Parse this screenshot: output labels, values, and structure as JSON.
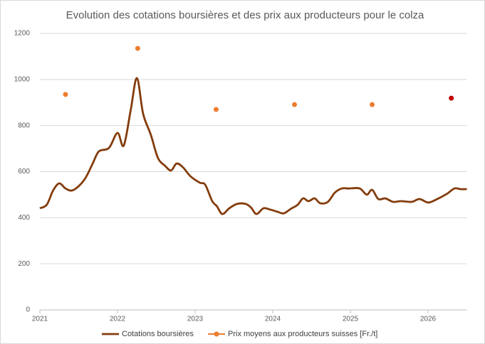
{
  "chart_data": {
    "type": "line",
    "title": "Evolution des cotations boursières et des prix aux producteurs pour le colza",
    "xlim": [
      2021,
      2026.5
    ],
    "xticks": [
      2021,
      2022,
      2023,
      2024,
      2025,
      2026
    ],
    "ylim": [
      0,
      1200
    ],
    "yticks": [
      0,
      200,
      400,
      600,
      800,
      1000,
      1200
    ],
    "grid": true,
    "legend": "bottom",
    "series": [
      {
        "name": "Cotations boursières",
        "type": "line",
        "color": "#843c0c",
        "x": [
          2021.0,
          2021.09,
          2021.17,
          2021.25,
          2021.33,
          2021.41,
          2021.5,
          2021.59,
          2021.68,
          2021.76,
          2021.89,
          2022.0,
          2022.08,
          2022.17,
          2022.25,
          2022.33,
          2022.43,
          2022.52,
          2022.61,
          2022.69,
          2022.76,
          2022.84,
          2022.94,
          2023.06,
          2023.13,
          2023.22,
          2023.28,
          2023.35,
          2023.44,
          2023.54,
          2023.65,
          2023.72,
          2023.79,
          2023.88,
          2023.97,
          2024.06,
          2024.14,
          2024.23,
          2024.32,
          2024.39,
          2024.46,
          2024.54,
          2024.61,
          2024.71,
          2024.8,
          2024.89,
          2024.98,
          2025.12,
          2025.21,
          2025.28,
          2025.36,
          2025.45,
          2025.55,
          2025.65,
          2025.79,
          2025.89,
          2026.0,
          2026.1,
          2026.24,
          2026.34,
          2026.42,
          2026.5
        ],
        "values": [
          441,
          457,
          518,
          549,
          527,
          518,
          537,
          574,
          635,
          688,
          703,
          768,
          713,
          867,
          1006,
          851,
          759,
          660,
          626,
          605,
          635,
          620,
          580,
          552,
          543,
          472,
          450,
          416,
          441,
          460,
          460,
          444,
          416,
          441,
          435,
          426,
          419,
          438,
          456,
          484,
          472,
          484,
          463,
          469,
          509,
          527,
          527,
          527,
          500,
          521,
          481,
          484,
          469,
          472,
          469,
          481,
          466,
          478,
          503,
          527,
          524,
          524
        ]
      },
      {
        "name": "Prix moyens aux producteurs suisses [Fr./t]",
        "type": "scatter",
        "color": "#ed7d31",
        "x": [
          2021.33,
          2022.26,
          2023.27,
          2024.28,
          2025.28,
          2026.3
        ],
        "values": [
          935,
          1135,
          870,
          891,
          891,
          919
        ],
        "point_colors": [
          "#ed7d31",
          "#ed7d31",
          "#ed7d31",
          "#ed7d31",
          "#ed7d31",
          "#c00000"
        ]
      }
    ]
  }
}
